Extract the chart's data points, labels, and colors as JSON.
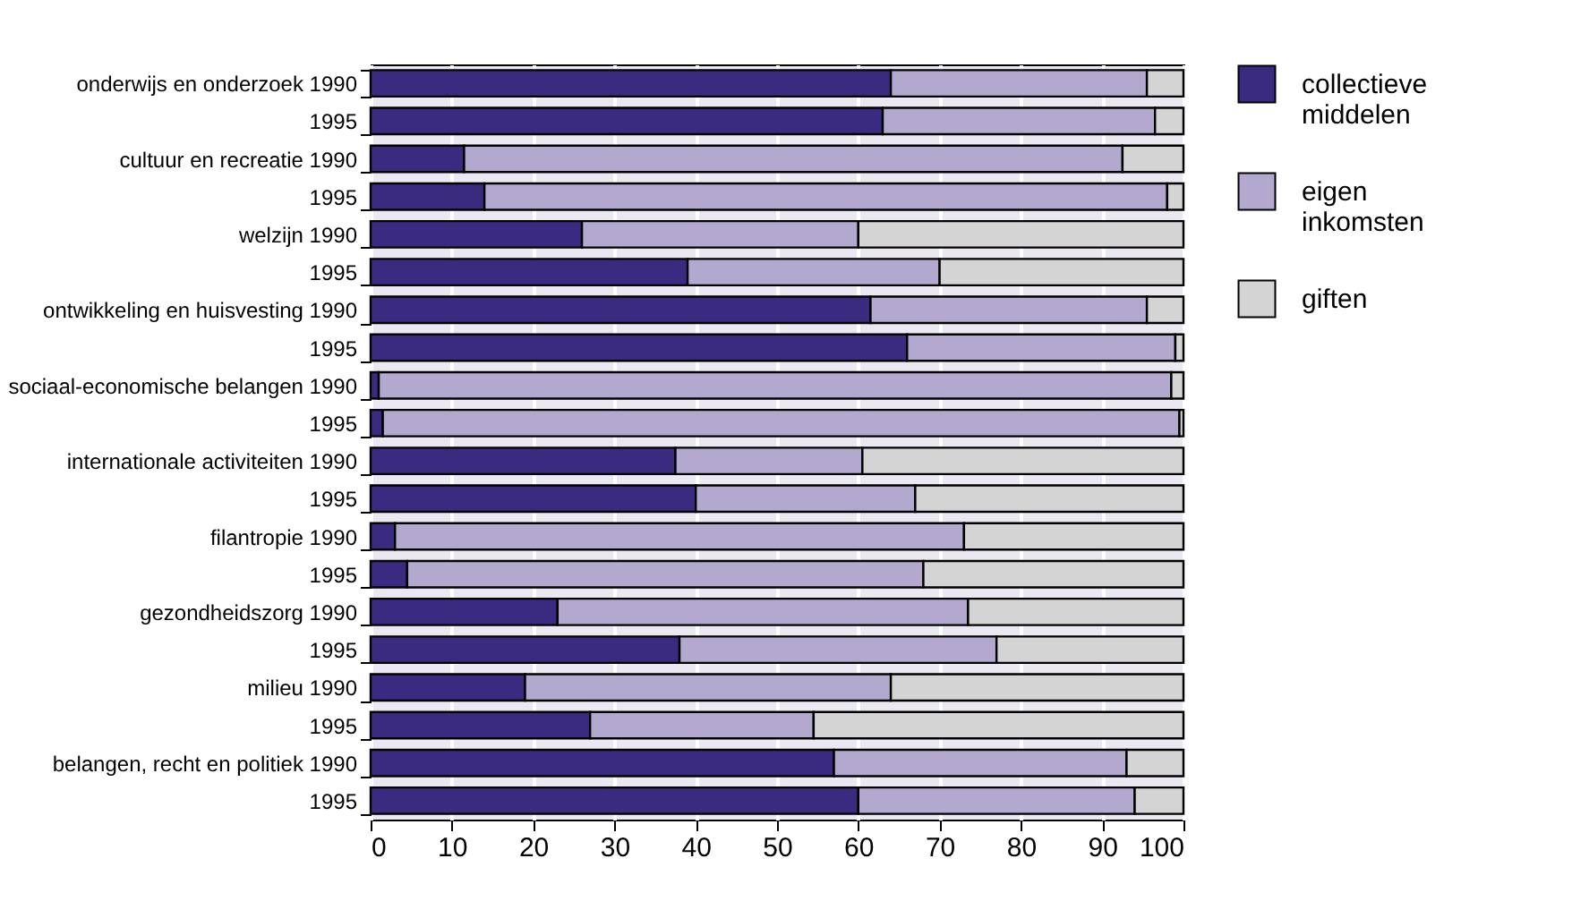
{
  "chart_data": {
    "type": "bar",
    "orientation": "horizontal",
    "stacked": true,
    "categories": [
      "onderwijs en onderzoek 1990",
      "1995",
      "cultuur en recreatie 1990",
      "1995",
      "welzijn 1990",
      "1995",
      "ontwikkeling en huisvesting 1990",
      "1995",
      "sociaal-economische belangen 1990",
      "1995",
      "internationale activiteiten 1990",
      "1995",
      "filantropie 1990",
      "1995",
      "gezondheidszorg 1990",
      "1995",
      "milieu 1990",
      "1995",
      "belangen, recht en politiek 1990",
      "1995"
    ],
    "series": [
      {
        "name": "collectieve middelen",
        "color": "#3a2a80",
        "values": [
          64,
          63,
          11.5,
          14,
          26,
          39,
          61.5,
          66,
          1,
          1.5,
          37.5,
          40,
          3,
          4.5,
          23,
          38,
          19,
          27,
          57,
          60
        ]
      },
      {
        "name": "eigen inkomsten",
        "color": "#b3a9cf",
        "values": [
          31.5,
          33.5,
          81,
          84,
          34,
          31,
          34,
          33,
          97.5,
          98,
          23,
          27,
          70,
          63.5,
          50.5,
          39,
          45,
          27.5,
          36,
          34
        ]
      },
      {
        "name": "giften",
        "color": "#d4d4d4",
        "values": [
          4.5,
          3.5,
          7.5,
          2,
          40,
          30,
          4.5,
          1,
          1.5,
          0.5,
          39.5,
          33,
          27,
          32,
          26.5,
          23,
          36,
          45.5,
          7,
          6
        ]
      }
    ],
    "xlim": [
      0,
      100
    ],
    "xticks": [
      0,
      10,
      20,
      30,
      40,
      50,
      60,
      70,
      80,
      90,
      100
    ],
    "grid": "x",
    "legend": "right"
  }
}
